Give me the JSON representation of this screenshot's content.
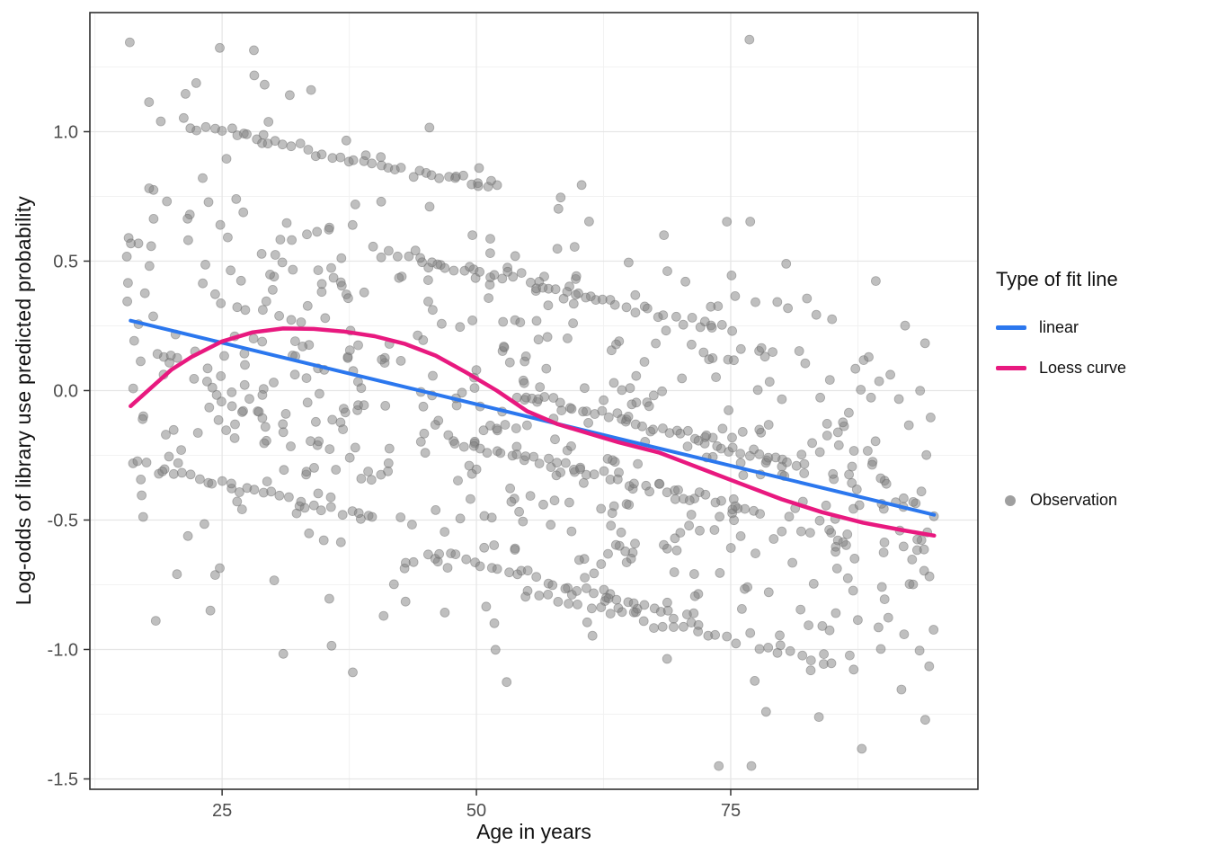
{
  "chart_data": {
    "type": "scatter",
    "title": "",
    "xlabel": "Age in years",
    "ylabel": "Log-odds of library use predicted probability",
    "x_ticks": [
      25,
      50,
      75
    ],
    "x_tick_labels": [
      "25",
      "50",
      "75"
    ],
    "y_ticks": [
      -1.5,
      -1.0,
      -0.5,
      0.0,
      0.5,
      1.0
    ],
    "y_tick_labels": [
      "-1.5",
      "-1.0",
      "-0.5",
      "0.0",
      "0.5",
      "1.0"
    ],
    "x_minor_ticks": [
      12.5,
      37.5,
      62.5,
      87.5
    ],
    "y_minor_ticks": [
      -1.25,
      -0.75,
      -0.25,
      0.25,
      0.75,
      1.25
    ],
    "x_range": [
      12.0,
      99.3
    ],
    "y_range": [
      -1.54,
      1.46
    ],
    "grid": true,
    "legend_position": "right",
    "series": [
      {
        "name": "linear",
        "type": "line",
        "color": "#2b77ee",
        "width": 4,
        "points": [
          [
            16,
            0.27
          ],
          [
            95,
            -0.48
          ]
        ]
      },
      {
        "name": "Loess curve",
        "type": "line",
        "color": "#e8197f",
        "width": 4.5,
        "points": [
          [
            16,
            -0.06
          ],
          [
            18,
            0.01
          ],
          [
            20,
            0.08
          ],
          [
            22,
            0.13
          ],
          [
            25,
            0.19
          ],
          [
            28,
            0.225
          ],
          [
            31,
            0.24
          ],
          [
            34,
            0.238
          ],
          [
            37,
            0.228
          ],
          [
            40,
            0.21
          ],
          [
            43,
            0.18
          ],
          [
            46,
            0.135
          ],
          [
            49,
            0.07
          ],
          [
            52,
            0.0
          ],
          [
            55,
            -0.08
          ],
          [
            58,
            -0.13
          ],
          [
            61,
            -0.165
          ],
          [
            64,
            -0.2
          ],
          [
            68,
            -0.24
          ],
          [
            72,
            -0.3
          ],
          [
            76,
            -0.36
          ],
          [
            80,
            -0.42
          ],
          [
            84,
            -0.47
          ],
          [
            88,
            -0.51
          ],
          [
            92,
            -0.54
          ],
          [
            95,
            -0.56
          ]
        ]
      }
    ],
    "observations": {
      "name": "Observation",
      "color": "#7f7f7f",
      "stroke": "#6b6b6b",
      "opacity": 0.5,
      "radius": 5,
      "seed": 42,
      "cloud": {
        "n": 640,
        "x_min": 15.5,
        "x_max": 95,
        "intercept": 0.42,
        "slope": -0.0095,
        "sd": 0.5,
        "sd_slope": -0.0012,
        "y_clip": [
          -1.45,
          1.4
        ]
      },
      "streaks": [
        {
          "n": 40,
          "x0": 22,
          "x1": 52,
          "y0": 1.02,
          "slope": -0.008,
          "jitter": 0.012
        },
        {
          "n": 45,
          "x0": 40,
          "x1": 75,
          "y0": 0.55,
          "slope": -0.009,
          "jitter": 0.012
        },
        {
          "n": 42,
          "x0": 55,
          "x1": 82,
          "y0": -0.02,
          "slope": -0.01,
          "jitter": 0.01
        },
        {
          "n": 40,
          "x0": 48,
          "x1": 78,
          "y0": -0.2,
          "slope": -0.009,
          "jitter": 0.012
        },
        {
          "n": 30,
          "x0": 16,
          "x1": 40,
          "y0": -0.28,
          "slope": -0.009,
          "jitter": 0.012
        },
        {
          "n": 35,
          "x0": 45,
          "x1": 72,
          "y0": -0.62,
          "slope": -0.01,
          "jitter": 0.012
        },
        {
          "n": 30,
          "x0": 55,
          "x1": 85,
          "y0": -0.78,
          "slope": -0.009,
          "jitter": 0.012
        }
      ]
    },
    "legend": {
      "title": "Type of fit line",
      "items": [
        {
          "label": "linear",
          "color": "#2b77ee",
          "swatch": "line"
        },
        {
          "label": "Loess curve",
          "color": "#e8197f",
          "swatch": "line"
        }
      ],
      "observation": {
        "label": "Observation",
        "color": "#7f7f7f",
        "swatch": "point"
      }
    },
    "panel": {
      "background": "#ffffff",
      "border": "#2f2f2f",
      "grid_major": "#e6e6e6",
      "grid_minor": "#f2f2f2",
      "tick_color": "#333333",
      "tick_label_color": "#4d4d4d"
    }
  }
}
